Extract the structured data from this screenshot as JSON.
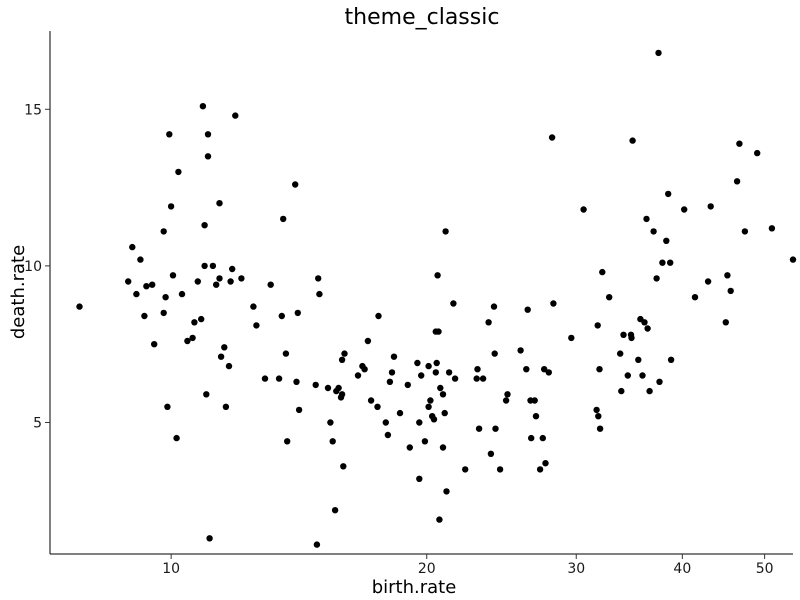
{
  "chart_data": {
    "type": "scatter",
    "title": "theme_classic",
    "xlabel": "birth.rate",
    "ylabel": "death.rate",
    "x_scale": "log",
    "x_ticks": [
      10,
      20,
      30,
      40,
      50
    ],
    "x_tick_labels": [
      "10",
      "20",
      "30",
      "40",
      "50"
    ],
    "y_ticks": [
      5,
      10,
      15
    ],
    "y_tick_labels": [
      "5",
      "10",
      "15"
    ],
    "xlim": [
      7.2,
      54
    ],
    "ylim": [
      0.8,
      17.5
    ],
    "grid": false,
    "legend": "none",
    "point_color": "#000000",
    "points": [
      [
        7.8,
        8.7
      ],
      [
        8.9,
        9.5
      ],
      [
        9.0,
        10.6
      ],
      [
        9.1,
        9.1
      ],
      [
        9.2,
        10.2
      ],
      [
        9.3,
        8.4
      ],
      [
        9.35,
        9.35
      ],
      [
        9.5,
        9.4
      ],
      [
        9.55,
        7.5
      ],
      [
        9.8,
        8.5
      ],
      [
        9.85,
        9.0
      ],
      [
        9.8,
        11.1
      ],
      [
        9.9,
        5.5
      ],
      [
        9.95,
        14.2
      ],
      [
        10.0,
        11.9
      ],
      [
        10.05,
        9.7
      ],
      [
        10.15,
        4.5
      ],
      [
        10.2,
        13.0
      ],
      [
        10.3,
        9.1
      ],
      [
        10.45,
        7.6
      ],
      [
        10.6,
        7.7
      ],
      [
        10.65,
        8.2
      ],
      [
        10.75,
        9.5
      ],
      [
        10.85,
        8.3
      ],
      [
        10.9,
        15.1
      ],
      [
        10.95,
        10.0
      ],
      [
        10.95,
        11.3
      ],
      [
        11.0,
        5.9
      ],
      [
        11.05,
        13.5
      ],
      [
        11.05,
        14.2
      ],
      [
        11.1,
        1.3
      ],
      [
        11.2,
        10.0
      ],
      [
        11.3,
        9.4
      ],
      [
        11.4,
        9.6
      ],
      [
        11.4,
        12.0
      ],
      [
        11.45,
        7.1
      ],
      [
        11.55,
        7.4
      ],
      [
        11.6,
        5.5
      ],
      [
        11.7,
        6.8
      ],
      [
        11.75,
        9.5
      ],
      [
        11.8,
        9.9
      ],
      [
        11.9,
        14.8
      ],
      [
        12.1,
        9.6
      ],
      [
        12.5,
        8.7
      ],
      [
        12.6,
        8.1
      ],
      [
        12.9,
        6.4
      ],
      [
        13.1,
        9.4
      ],
      [
        13.4,
        6.4
      ],
      [
        13.5,
        8.4
      ],
      [
        13.55,
        11.5
      ],
      [
        13.65,
        7.2
      ],
      [
        13.7,
        4.4
      ],
      [
        14.0,
        12.6
      ],
      [
        14.05,
        6.3
      ],
      [
        14.1,
        8.5
      ],
      [
        14.15,
        5.4
      ],
      [
        14.8,
        6.2
      ],
      [
        14.85,
        1.1
      ],
      [
        14.9,
        9.6
      ],
      [
        14.95,
        9.1
      ],
      [
        15.3,
        6.1
      ],
      [
        15.4,
        5.0
      ],
      [
        15.5,
        4.4
      ],
      [
        15.6,
        2.2
      ],
      [
        15.65,
        6.0
      ],
      [
        15.75,
        6.1
      ],
      [
        15.85,
        5.8
      ],
      [
        15.9,
        7.0
      ],
      [
        15.9,
        5.9
      ],
      [
        15.95,
        3.6
      ],
      [
        16.0,
        7.2
      ],
      [
        16.6,
        6.5
      ],
      [
        16.8,
        6.8
      ],
      [
        16.9,
        6.7
      ],
      [
        17.05,
        7.6
      ],
      [
        17.2,
        5.7
      ],
      [
        17.5,
        5.5
      ],
      [
        17.55,
        8.4
      ],
      [
        17.9,
        5.0
      ],
      [
        18.0,
        4.6
      ],
      [
        18.1,
        6.3
      ],
      [
        18.2,
        6.6
      ],
      [
        18.3,
        7.1
      ],
      [
        18.6,
        5.3
      ],
      [
        19.0,
        6.2
      ],
      [
        19.1,
        4.2
      ],
      [
        19.5,
        6.9
      ],
      [
        19.6,
        3.2
      ],
      [
        19.6,
        5.0
      ],
      [
        19.7,
        6.5
      ],
      [
        19.9,
        4.4
      ],
      [
        20.1,
        6.8
      ],
      [
        20.1,
        5.5
      ],
      [
        20.2,
        5.7
      ],
      [
        20.3,
        5.2
      ],
      [
        20.4,
        5.1
      ],
      [
        20.5,
        6.6
      ],
      [
        20.5,
        7.9
      ],
      [
        20.55,
        6.9
      ],
      [
        20.6,
        9.7
      ],
      [
        20.65,
        7.9
      ],
      [
        20.7,
        1.9
      ],
      [
        20.75,
        6.1
      ],
      [
        20.9,
        4.2
      ],
      [
        20.9,
        5.9
      ],
      [
        21.0,
        5.3
      ],
      [
        21.05,
        11.1
      ],
      [
        21.1,
        2.8
      ],
      [
        21.25,
        6.6
      ],
      [
        21.5,
        8.8
      ],
      [
        21.6,
        6.4
      ],
      [
        22.2,
        3.5
      ],
      [
        22.9,
        6.4
      ],
      [
        22.95,
        6.7
      ],
      [
        23.05,
        4.8
      ],
      [
        23.3,
        6.4
      ],
      [
        23.65,
        8.2
      ],
      [
        23.8,
        4.0
      ],
      [
        24.0,
        8.7
      ],
      [
        24.05,
        7.2
      ],
      [
        24.1,
        4.8
      ],
      [
        24.4,
        3.5
      ],
      [
        24.8,
        5.7
      ],
      [
        24.9,
        5.9
      ],
      [
        25.8,
        7.3
      ],
      [
        26.2,
        6.7
      ],
      [
        26.3,
        8.6
      ],
      [
        26.5,
        5.7
      ],
      [
        26.55,
        4.5
      ],
      [
        26.8,
        5.7
      ],
      [
        26.9,
        5.2
      ],
      [
        27.2,
        3.5
      ],
      [
        27.4,
        4.5
      ],
      [
        27.5,
        6.7
      ],
      [
        27.6,
        3.7
      ],
      [
        27.85,
        6.6
      ],
      [
        28.1,
        14.1
      ],
      [
        28.2,
        8.8
      ],
      [
        29.6,
        7.7
      ],
      [
        30.6,
        11.8
      ],
      [
        31.7,
        5.4
      ],
      [
        31.8,
        8.1
      ],
      [
        31.85,
        5.2
      ],
      [
        31.95,
        6.7
      ],
      [
        32.0,
        4.8
      ],
      [
        32.2,
        9.8
      ],
      [
        32.8,
        9.0
      ],
      [
        33.8,
        7.2
      ],
      [
        33.9,
        6.0
      ],
      [
        34.1,
        7.8
      ],
      [
        34.5,
        6.5
      ],
      [
        34.8,
        7.8
      ],
      [
        34.85,
        7.7
      ],
      [
        34.95,
        14.0
      ],
      [
        35.5,
        7.0
      ],
      [
        35.7,
        8.3
      ],
      [
        35.9,
        6.5
      ],
      [
        36.1,
        8.2
      ],
      [
        36.4,
        8.0
      ],
      [
        36.3,
        11.5
      ],
      [
        36.6,
        6.0
      ],
      [
        37.0,
        11.1
      ],
      [
        37.3,
        9.6
      ],
      [
        37.5,
        16.8
      ],
      [
        37.6,
        6.3
      ],
      [
        37.9,
        10.1
      ],
      [
        38.3,
        10.8
      ],
      [
        38.5,
        12.3
      ],
      [
        38.7,
        10.1
      ],
      [
        38.8,
        7.0
      ],
      [
        40.2,
        11.8
      ],
      [
        41.4,
        9.0
      ],
      [
        42.9,
        9.5
      ],
      [
        43.2,
        11.9
      ],
      [
        45.0,
        8.2
      ],
      [
        45.2,
        9.7
      ],
      [
        45.6,
        9.2
      ],
      [
        46.4,
        12.7
      ],
      [
        46.7,
        13.9
      ],
      [
        47.4,
        11.1
      ],
      [
        49.0,
        13.6
      ],
      [
        51.0,
        11.2
      ],
      [
        54.0,
        10.2
      ]
    ]
  }
}
